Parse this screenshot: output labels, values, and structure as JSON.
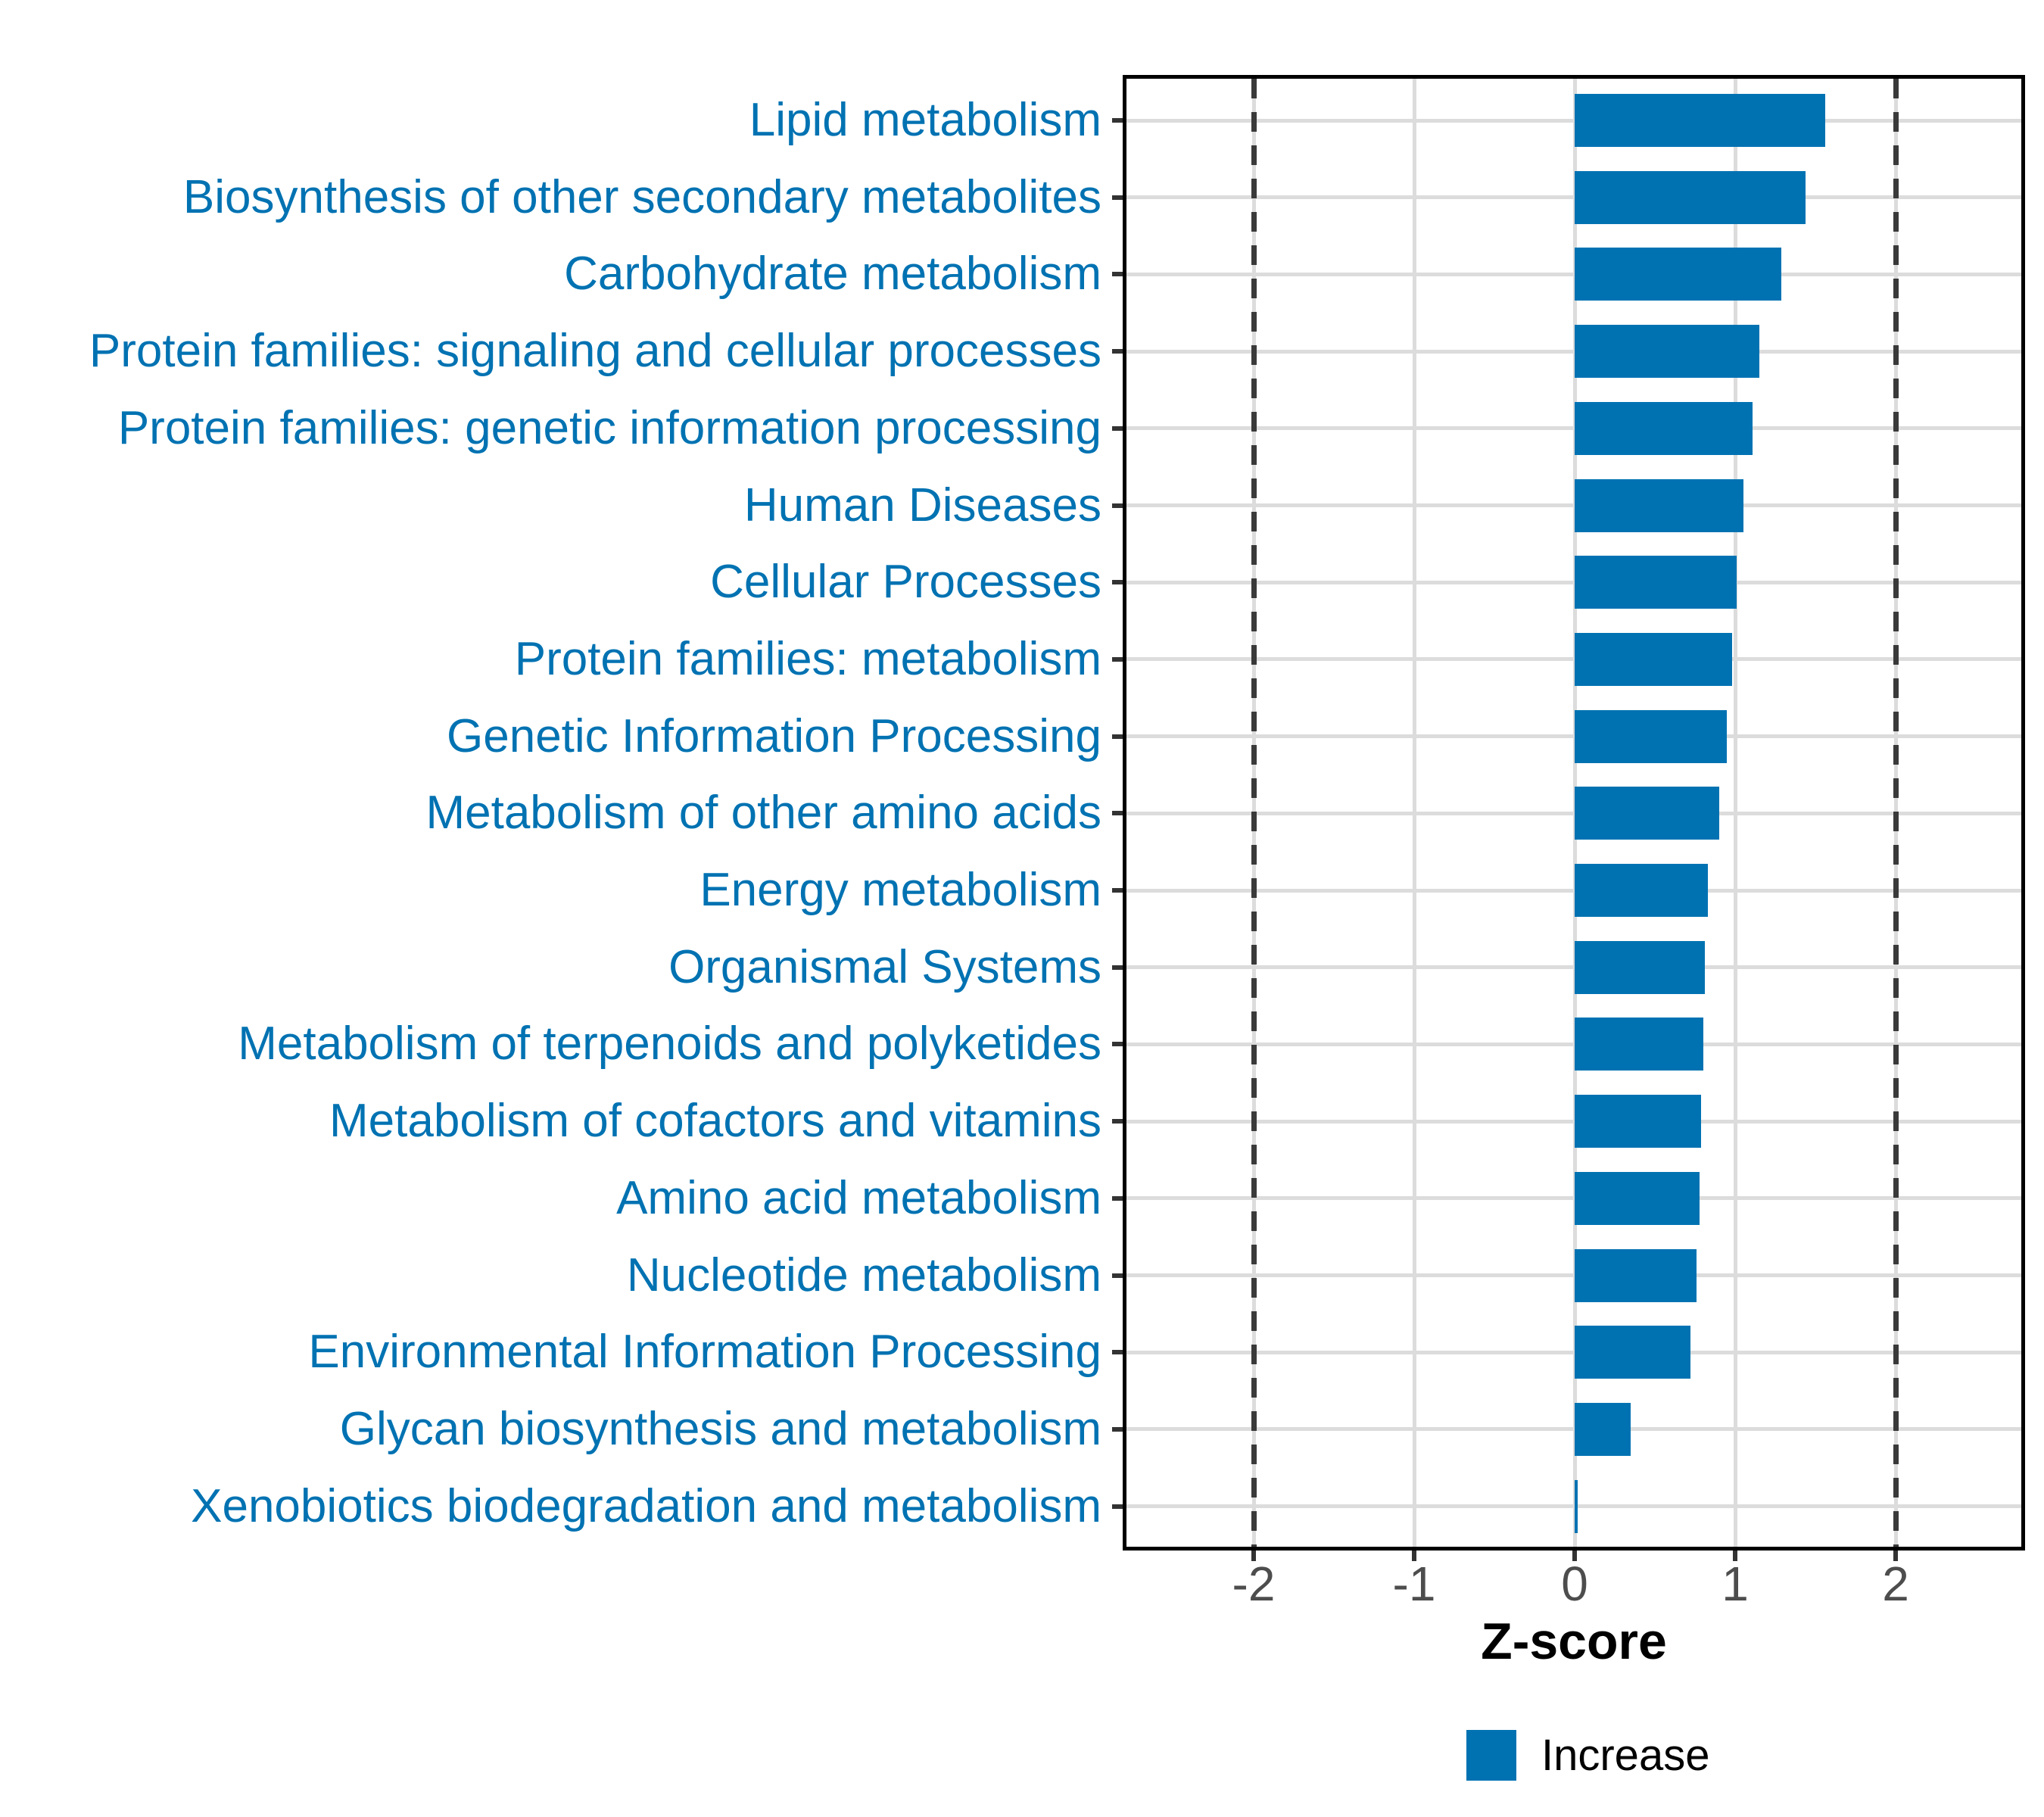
{
  "chart_data": {
    "type": "bar",
    "orientation": "horizontal",
    "title": "",
    "xlabel": "Z-score",
    "ylabel": "",
    "categories": [
      "Lipid metabolism",
      "Biosynthesis of other secondary metabolites",
      "Carbohydrate metabolism",
      "Protein families: signaling and cellular processes",
      "Protein families: genetic information processing",
      "Human Diseases",
      "Cellular Processes",
      "Protein families: metabolism",
      "Genetic Information Processing",
      "Metabolism of other amino acids",
      "Energy metabolism",
      "Organismal Systems",
      "Metabolism of terpenoids and polyketides",
      "Metabolism of cofactors and vitamins",
      "Amino acid metabolism",
      "Nucleotide metabolism",
      "Environmental Information Processing",
      "Glycan biosynthesis and metabolism",
      "Xenobiotics biodegradation and metabolism"
    ],
    "values": [
      1.56,
      1.44,
      1.29,
      1.15,
      1.11,
      1.05,
      1.01,
      0.98,
      0.95,
      0.9,
      0.83,
      0.81,
      0.8,
      0.79,
      0.78,
      0.76,
      0.72,
      0.35,
      0.01
    ],
    "x_ticks": [
      -2,
      -1,
      0,
      1,
      2
    ],
    "x_tick_labels": [
      "-2",
      "-1",
      "0",
      "1",
      "2"
    ],
    "xlim": [
      -2.81,
      2.81
    ],
    "reference_lines": [
      -2,
      2
    ],
    "grid": true,
    "legend": {
      "position": "bottom",
      "entries": [
        {
          "label": "Increase",
          "color": "#0072B2"
        }
      ]
    },
    "colors": {
      "bar": "#0072B2",
      "category_label": "#0072B2",
      "tick_label": "#4D4D4D",
      "axis_title": "#000000",
      "gridline": "#DCDCDC",
      "reference_line": "#3A3A3A",
      "panel_border": "#000000"
    }
  }
}
